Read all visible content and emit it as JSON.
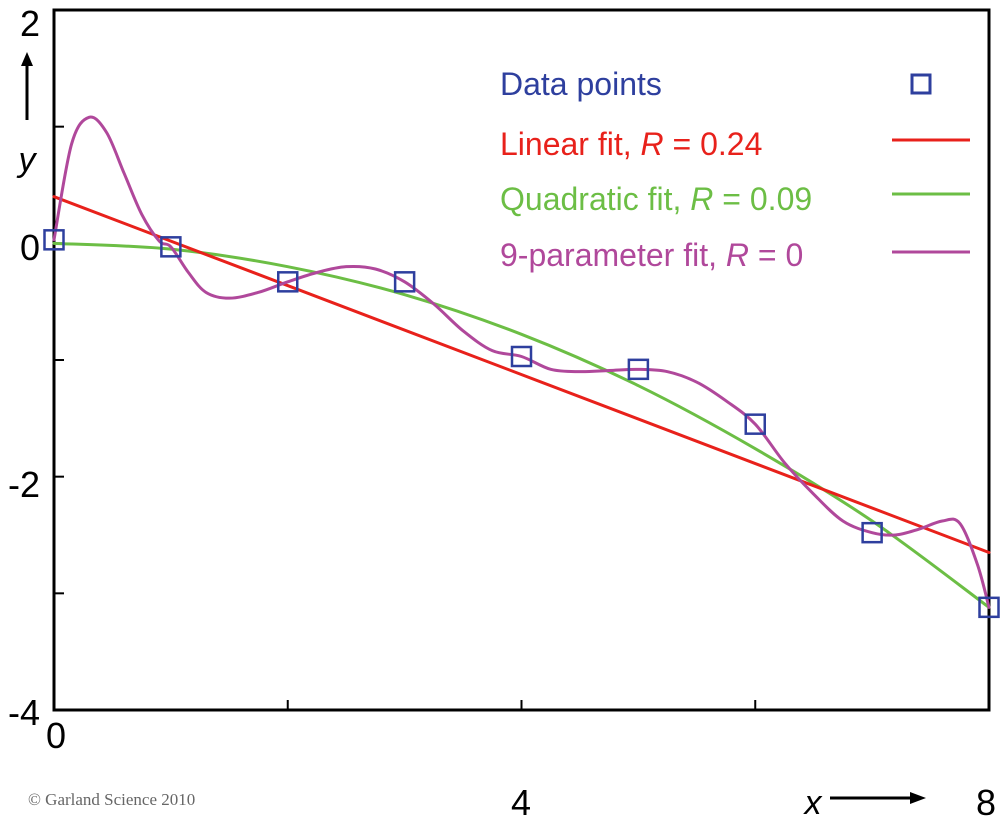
{
  "chart_data": {
    "type": "scatter",
    "xlabel": "x",
    "ylabel": "y",
    "xlim": [
      0,
      8
    ],
    "ylim": [
      -4,
      2
    ],
    "x_ticks": [
      0,
      4,
      8
    ],
    "x_tick_labels": [
      "0",
      "4",
      "8"
    ],
    "x_minor_ticks": [
      2,
      6
    ],
    "y_ticks": [
      2,
      0,
      -2,
      -4
    ],
    "y_tick_labels": [
      "2",
      "0",
      "-2",
      "-4"
    ],
    "y_minor_ticks": [
      1,
      -1,
      -3
    ],
    "grid": false,
    "legend_position": "top-right",
    "colors": {
      "data": "#2E3F9E",
      "linear": "#E8211B",
      "quadratic": "#6CBE45",
      "ninep": "#B0489B"
    },
    "series": [
      {
        "name": "Data points",
        "kind": "scatter",
        "marker": "square",
        "x": [
          0,
          1,
          2,
          3,
          4,
          5,
          6,
          7,
          8
        ],
        "y": [
          0.03,
          -0.03,
          -0.33,
          -0.33,
          -0.97,
          -1.08,
          -1.55,
          -2.48,
          -3.12
        ]
      },
      {
        "name": "Linear fit",
        "R": "0.24",
        "kind": "line",
        "x": [
          0,
          8
        ],
        "y": [
          0.4,
          -2.65
        ]
      },
      {
        "name": "Quadratic fit",
        "R": "0.09",
        "kind": "line",
        "x": [
          0,
          1,
          2,
          3,
          4,
          5,
          6,
          7,
          8
        ],
        "y": [
          0.0,
          -0.05,
          -0.2,
          -0.44,
          -0.78,
          -1.22,
          -1.76,
          -2.38,
          -3.12
        ]
      },
      {
        "name": "9-parameter fit",
        "R": "0",
        "kind": "line",
        "x": [
          0,
          0.15,
          0.3,
          0.45,
          0.6,
          0.75,
          0.9,
          1.0,
          1.15,
          1.3,
          1.5,
          1.75,
          2.0,
          2.25,
          2.5,
          2.75,
          3.0,
          3.25,
          3.5,
          3.75,
          4.0,
          4.25,
          4.5,
          4.75,
          5.0,
          5.25,
          5.5,
          5.75,
          6.0,
          6.25,
          6.5,
          6.75,
          7.0,
          7.2,
          7.4,
          7.6,
          7.75,
          7.9,
          8.0
        ],
        "y": [
          0.03,
          0.85,
          1.08,
          0.95,
          0.6,
          0.25,
          0.02,
          -0.03,
          -0.25,
          -0.42,
          -0.47,
          -0.42,
          -0.33,
          -0.25,
          -0.2,
          -0.22,
          -0.33,
          -0.52,
          -0.75,
          -0.92,
          -0.97,
          -1.08,
          -1.1,
          -1.09,
          -1.08,
          -1.1,
          -1.19,
          -1.35,
          -1.55,
          -1.88,
          -2.15,
          -2.38,
          -2.48,
          -2.5,
          -2.45,
          -2.38,
          -2.4,
          -2.75,
          -3.12
        ]
      }
    ],
    "legend": {
      "data_label": "Data points",
      "linear_prefix": "Linear fit, ",
      "quadratic_prefix": "Quadratic fit, ",
      "ninep_prefix": "9-parameter fit, ",
      "r_symbol": "R",
      "linear_suffix": " = 0.24",
      "quadratic_suffix": " = 0.09",
      "ninep_suffix": " = 0"
    }
  },
  "footer": {
    "copyright": "© Garland Science 2010"
  }
}
